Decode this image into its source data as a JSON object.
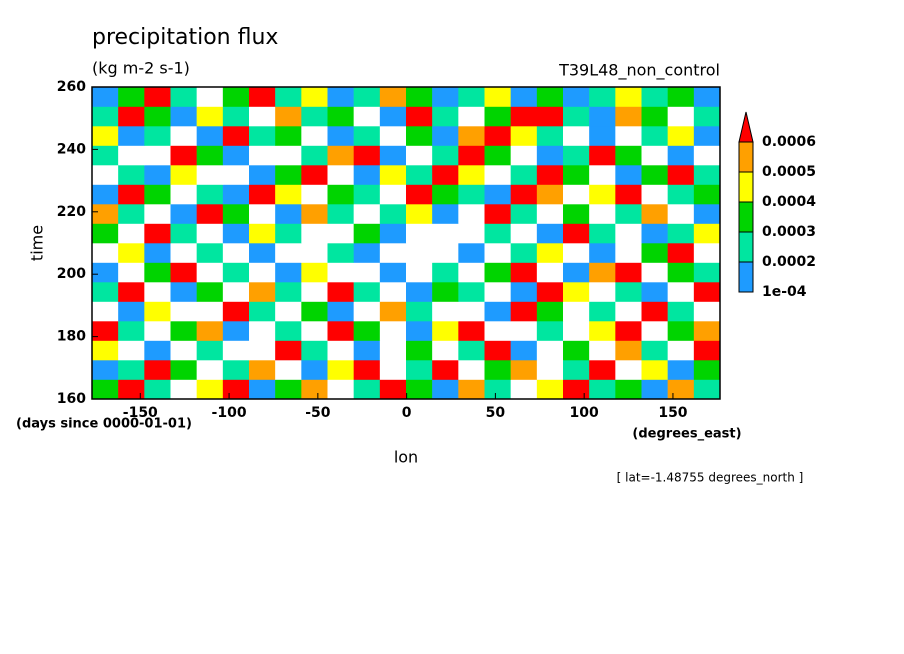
{
  "chart_data": {
    "type": "contourf",
    "title": "precipitation flux",
    "subtitle": "(kg m-2 s-1)",
    "experiment": "T39L48_non_control",
    "x_label": "lon",
    "x_units": "(degrees_east)",
    "y_label": "time",
    "y_units": "(days since 0000-01-01)",
    "annotation": "[ lat=-1.48755 degrees_north ]",
    "xlim": [
      -177.2,
      176.5
    ],
    "ylim": [
      160,
      260
    ],
    "xticks": [
      -150,
      -100,
      -50,
      0,
      50,
      100,
      150
    ],
    "yticks": [
      160,
      180,
      200,
      220,
      240,
      260
    ],
    "colorbar": {
      "levels": [
        {
          "value": 0.0001,
          "label": "1e-04"
        },
        0.0002,
        0.0003,
        0.0004,
        0.0005,
        0.0006
      ],
      "colors": [
        "#1e9bff",
        "#00e6a0",
        "#00d400",
        "#ffff00",
        "#ffa000",
        "#ff0000"
      ]
    },
    "z": [
      [
        0.0003,
        0.0006,
        0.0002,
        0,
        0.0004,
        0.0006,
        0.0001,
        0.0003,
        0.0005,
        0,
        0.0002,
        0.0006,
        0.0003,
        0.0001,
        0.0005,
        0.0002,
        0,
        0.0004,
        0.0006,
        0.0002,
        0.0003,
        0.0001,
        0.0005,
        0.0002
      ],
      [
        0.0001,
        0.0002,
        0.0006,
        0.0003,
        0,
        0.0002,
        0.0005,
        0,
        0.0001,
        0.0004,
        0.0006,
        0,
        0.0002,
        0.0006,
        0,
        0.0003,
        0.0005,
        0,
        0.0002,
        0.0006,
        0,
        0.0004,
        0.0001,
        0.0003
      ],
      [
        0.0004,
        0,
        0.0001,
        0,
        0.0002,
        0,
        0,
        0.0006,
        0.0002,
        0,
        0.0001,
        0,
        0.0003,
        0,
        0.0002,
        0.0006,
        0.0001,
        0,
        0.0003,
        0,
        0.0005,
        0.0002,
        0,
        0.0006
      ],
      [
        0.0006,
        0.0002,
        0,
        0.0003,
        0.0005,
        0.0001,
        0,
        0.0002,
        0,
        0.0006,
        0.0003,
        0,
        0.0001,
        0.0004,
        0.0006,
        0,
        0,
        0.0002,
        0,
        0.0004,
        0.0006,
        0,
        0.0003,
        0.0005
      ],
      [
        0,
        0.0001,
        0.0004,
        0,
        0,
        0.0006,
        0.0002,
        0,
        0.0003,
        0.0001,
        0,
        0.0005,
        0.0002,
        0,
        0,
        0.0001,
        0.0006,
        0.0003,
        0,
        0.0002,
        0,
        0.0006,
        0.0002,
        0
      ],
      [
        0.0002,
        0.0006,
        0,
        0.0001,
        0.0003,
        0,
        0.0005,
        0.0002,
        0,
        0.0006,
        0.0002,
        0,
        0.0001,
        0.0003,
        0.0002,
        0,
        0.0001,
        0.0006,
        0.0004,
        0,
        0.0002,
        0.0001,
        0,
        0.0006
      ],
      [
        0.0001,
        0,
        0.0003,
        0.0006,
        0,
        0.0002,
        0,
        0.0001,
        0.0004,
        0,
        0,
        0.0001,
        0,
        0.0002,
        0,
        0.0003,
        0.0006,
        0,
        0.0001,
        0.0005,
        0.0006,
        0,
        0.0003,
        0.0002
      ],
      [
        0,
        0.0004,
        0.0001,
        0,
        0.0002,
        0,
        0.0001,
        0,
        0,
        0.0002,
        0.0001,
        0,
        0,
        0,
        0.0001,
        0,
        0.0002,
        0.0004,
        0,
        0.0001,
        0,
        0.0003,
        0.0006,
        0
      ],
      [
        0.0003,
        0,
        0.0006,
        0.0002,
        0,
        0.0001,
        0.0004,
        0.0002,
        0,
        0,
        0.0003,
        0.0001,
        0,
        0,
        0,
        0.0002,
        0,
        0.0001,
        0.0006,
        0.0002,
        0,
        0.0001,
        0.0002,
        0.0004
      ],
      [
        0.0005,
        0.0002,
        0,
        0.0001,
        0.0006,
        0.0003,
        0,
        0.0001,
        0.0005,
        0.0002,
        0,
        0.0002,
        0.0004,
        0.0001,
        0,
        0.0006,
        0.0002,
        0,
        0.0003,
        0,
        0.0002,
        0.0005,
        0,
        0.0001
      ],
      [
        0.0001,
        0.0006,
        0.0003,
        0,
        0.0002,
        0.0001,
        0.0006,
        0.0004,
        0,
        0.0003,
        0.0002,
        0,
        0.0006,
        0.0003,
        0.0002,
        0.0001,
        0.0006,
        0.0005,
        0,
        0.0004,
        0.0006,
        0,
        0.0002,
        0.0003
      ],
      [
        0,
        0.0002,
        0.0001,
        0.0004,
        0,
        0,
        0.0001,
        0.0003,
        0.0006,
        0,
        0.0001,
        0.0004,
        0.0002,
        0.0006,
        0.0004,
        0,
        0.0002,
        0.0006,
        0.0003,
        0,
        0.0001,
        0.0003,
        0.0006,
        0.0002
      ],
      [
        0.0002,
        0,
        0,
        0.0006,
        0.0003,
        0.0001,
        0,
        0,
        0.0002,
        0.0005,
        0.0006,
        0.0001,
        0,
        0.0002,
        0.0006,
        0.0003,
        0,
        0.0001,
        0.0002,
        0.0006,
        0.0003,
        0,
        0.0001,
        0
      ],
      [
        0.0004,
        0.0001,
        0.0002,
        0,
        0.0001,
        0.0006,
        0.0002,
        0.0003,
        0,
        0.0001,
        0.0002,
        0,
        0.0003,
        0.0001,
        0.0005,
        0.0006,
        0.0004,
        0.0002,
        0,
        0.0001,
        0,
        0.0002,
        0.0004,
        0.0001
      ],
      [
        0.0002,
        0.0006,
        0.0003,
        0.0001,
        0.0004,
        0.0002,
        0,
        0.0005,
        0.0002,
        0.0003,
        0,
        0.0001,
        0.0006,
        0.0002,
        0,
        0.0003,
        0.0006,
        0.0006,
        0.0002,
        0.0001,
        0.0005,
        0.0003,
        0,
        0.0002
      ],
      [
        0.0001,
        0.0003,
        0.0006,
        0.0002,
        0,
        0.0003,
        0.0006,
        0.0002,
        0.0004,
        0.0001,
        0.0002,
        0.0005,
        0.0003,
        0.0001,
        0.0002,
        0.0004,
        0.0001,
        0.0003,
        0.0001,
        0.0002,
        0.0004,
        0.0002,
        0.0003,
        0.0001
      ]
    ]
  }
}
